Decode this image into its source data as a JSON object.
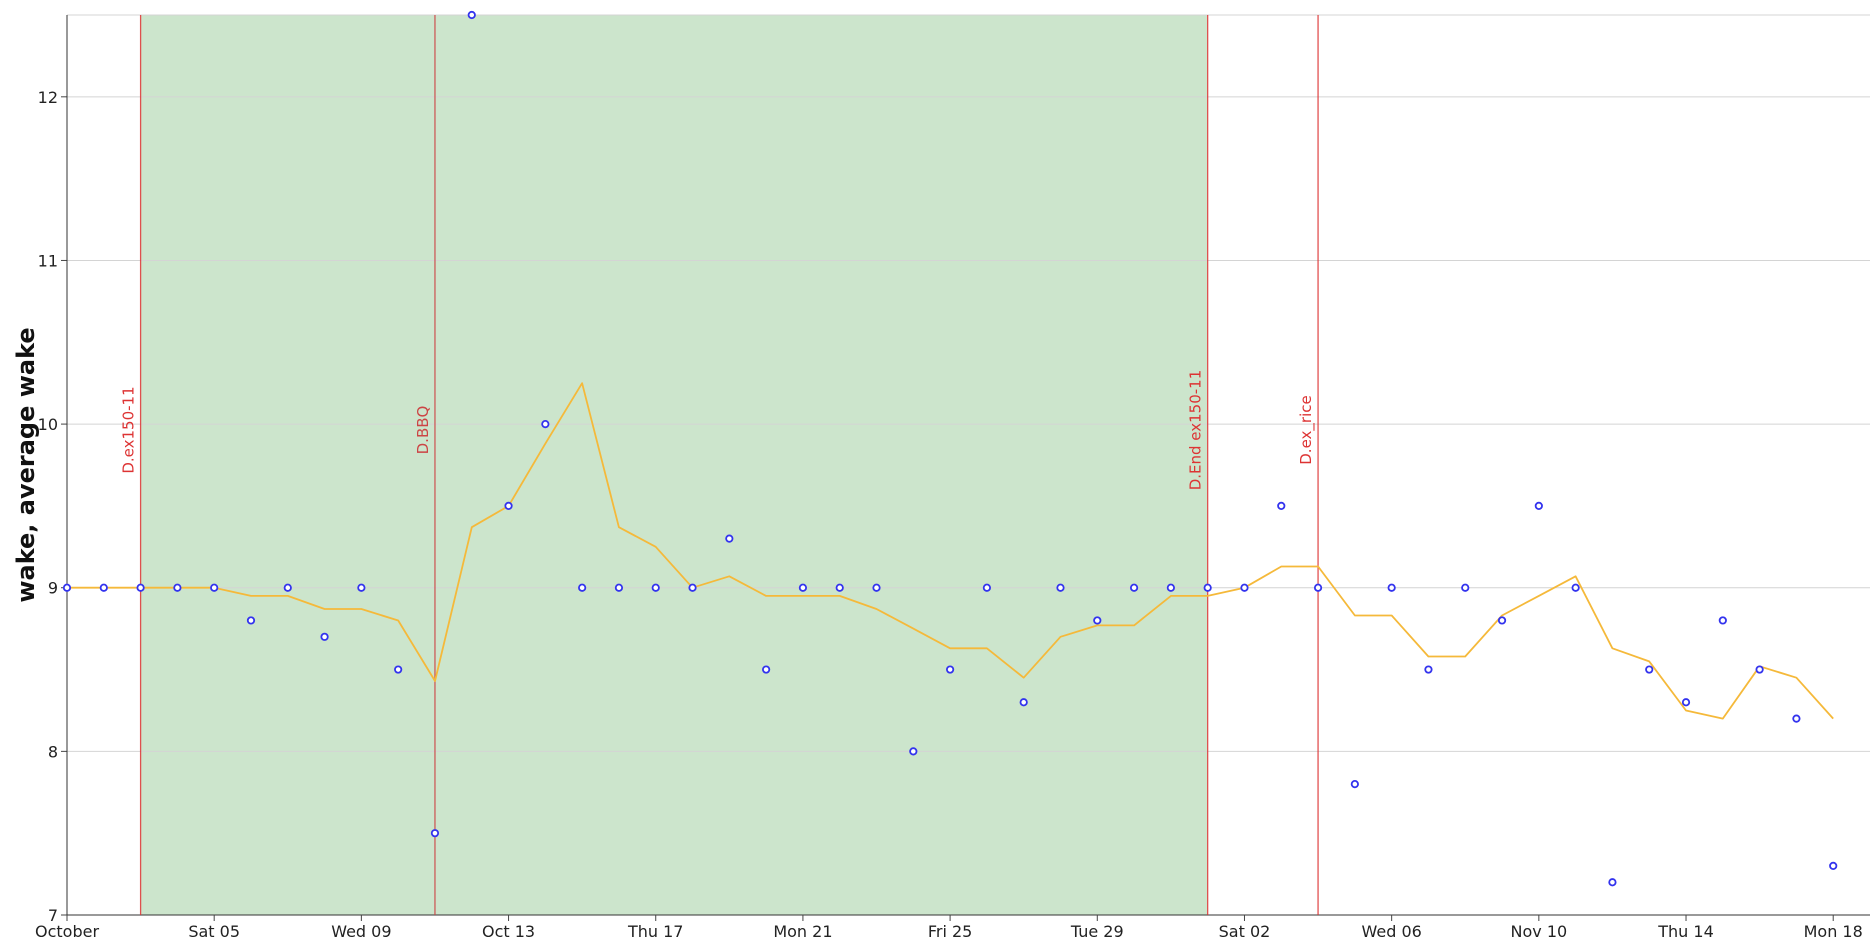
{
  "chart_data": {
    "type": "line",
    "title": "",
    "ylabel": "wake, average wake",
    "xlabel": "",
    "ylim": [
      7,
      12.5
    ],
    "xlim": [
      "2024-10-01",
      "2024-11-19"
    ],
    "grid": "horizontal",
    "y_ticks": [
      7,
      8,
      9,
      10,
      11,
      12
    ],
    "x_ticks": [
      {
        "date": "2024-10-01",
        "label": "October"
      },
      {
        "date": "2024-10-05",
        "label": "Sat 05"
      },
      {
        "date": "2024-10-09",
        "label": "Wed 09"
      },
      {
        "date": "2024-10-13",
        "label": "Oct 13"
      },
      {
        "date": "2024-10-17",
        "label": "Thu 17"
      },
      {
        "date": "2024-10-21",
        "label": "Mon 21"
      },
      {
        "date": "2024-10-25",
        "label": "Fri 25"
      },
      {
        "date": "2024-10-29",
        "label": "Tue 29"
      },
      {
        "date": "2024-11-02",
        "label": "Sat 02"
      },
      {
        "date": "2024-11-06",
        "label": "Wed 06"
      },
      {
        "date": "2024-11-10",
        "label": "Nov 10"
      },
      {
        "date": "2024-11-14",
        "label": "Thu 14"
      },
      {
        "date": "2024-11-18",
        "label": "Mon 18"
      }
    ],
    "shaded_region": {
      "start": "2024-10-03",
      "end": "2024-11-01",
      "color": "#cce5cc"
    },
    "annotations": [
      {
        "date": "2024-10-03",
        "label": "D.ex150-11",
        "color": "#dd3333"
      },
      {
        "date": "2024-10-11",
        "label": "D.BBQ",
        "color": "#cc4444"
      },
      {
        "date": "2024-11-01",
        "label": "D.End ex150-11",
        "color": "#dd3333"
      },
      {
        "date": "2024-11-04",
        "label": "D.ex_rice",
        "color": "#dd3333"
      }
    ],
    "series": [
      {
        "name": "wake",
        "style": "points",
        "color": "#3333ee",
        "points": [
          [
            "2024-10-01",
            9.0
          ],
          [
            "2024-10-02",
            9.0
          ],
          [
            "2024-10-03",
            9.0
          ],
          [
            "2024-10-04",
            9.0
          ],
          [
            "2024-10-05",
            9.0
          ],
          [
            "2024-10-06",
            8.8
          ],
          [
            "2024-10-07",
            9.0
          ],
          [
            "2024-10-08",
            8.7
          ],
          [
            "2024-10-09",
            9.0
          ],
          [
            "2024-10-10",
            8.5
          ],
          [
            "2024-10-11",
            7.5
          ],
          [
            "2024-10-12",
            12.5
          ],
          [
            "2024-10-13",
            9.5
          ],
          [
            "2024-10-14",
            10.0
          ],
          [
            "2024-10-15",
            9.0
          ],
          [
            "2024-10-16",
            9.0
          ],
          [
            "2024-10-17",
            9.0
          ],
          [
            "2024-10-18",
            9.0
          ],
          [
            "2024-10-19",
            9.3
          ],
          [
            "2024-10-20",
            8.5
          ],
          [
            "2024-10-21",
            9.0
          ],
          [
            "2024-10-22",
            9.0
          ],
          [
            "2024-10-23",
            9.0
          ],
          [
            "2024-10-24",
            8.0
          ],
          [
            "2024-10-25",
            8.5
          ],
          [
            "2024-10-26",
            9.0
          ],
          [
            "2024-10-27",
            8.3
          ],
          [
            "2024-10-28",
            9.0
          ],
          [
            "2024-10-29",
            8.8
          ],
          [
            "2024-10-30",
            9.0
          ],
          [
            "2024-10-31",
            9.0
          ],
          [
            "2024-11-01",
            9.0
          ],
          [
            "2024-11-02",
            9.0
          ],
          [
            "2024-11-03",
            9.5
          ],
          [
            "2024-11-04",
            9.0
          ],
          [
            "2024-11-05",
            7.8
          ],
          [
            "2024-11-06",
            9.0
          ],
          [
            "2024-11-07",
            8.5
          ],
          [
            "2024-11-08",
            9.0
          ],
          [
            "2024-11-09",
            8.8
          ],
          [
            "2024-11-10",
            9.5
          ],
          [
            "2024-11-11",
            9.0
          ],
          [
            "2024-11-12",
            7.2
          ],
          [
            "2024-11-13",
            8.5
          ],
          [
            "2024-11-14",
            8.3
          ],
          [
            "2024-11-15",
            8.8
          ],
          [
            "2024-11-16",
            8.5
          ],
          [
            "2024-11-17",
            8.2
          ],
          [
            "2024-11-18",
            7.3
          ]
        ]
      },
      {
        "name": "average wake",
        "style": "line",
        "color": "#f5b93a",
        "points": [
          [
            "2024-10-01",
            9.0
          ],
          [
            "2024-10-02",
            9.0
          ],
          [
            "2024-10-03",
            9.0
          ],
          [
            "2024-10-04",
            9.0
          ],
          [
            "2024-10-05",
            9.0
          ],
          [
            "2024-10-06",
            8.95
          ],
          [
            "2024-10-07",
            8.95
          ],
          [
            "2024-10-08",
            8.87
          ],
          [
            "2024-10-09",
            8.87
          ],
          [
            "2024-10-10",
            8.8
          ],
          [
            "2024-10-11",
            8.43
          ],
          [
            "2024-10-12",
            9.37
          ],
          [
            "2024-10-13",
            9.5
          ],
          [
            "2024-10-14",
            9.88
          ],
          [
            "2024-10-15",
            10.25
          ],
          [
            "2024-10-16",
            9.37
          ],
          [
            "2024-10-17",
            9.25
          ],
          [
            "2024-10-18",
            9.0
          ],
          [
            "2024-10-19",
            9.07
          ],
          [
            "2024-10-20",
            8.95
          ],
          [
            "2024-10-21",
            8.95
          ],
          [
            "2024-10-22",
            8.95
          ],
          [
            "2024-10-23",
            8.87
          ],
          [
            "2024-10-24",
            8.75
          ],
          [
            "2024-10-25",
            8.63
          ],
          [
            "2024-10-26",
            8.63
          ],
          [
            "2024-10-27",
            8.45
          ],
          [
            "2024-10-28",
            8.7
          ],
          [
            "2024-10-29",
            8.77
          ],
          [
            "2024-10-30",
            8.77
          ],
          [
            "2024-10-31",
            8.95
          ],
          [
            "2024-11-01",
            8.95
          ],
          [
            "2024-11-02",
            9.0
          ],
          [
            "2024-11-03",
            9.13
          ],
          [
            "2024-11-04",
            9.13
          ],
          [
            "2024-11-05",
            8.83
          ],
          [
            "2024-11-06",
            8.83
          ],
          [
            "2024-11-07",
            8.58
          ],
          [
            "2024-11-08",
            8.58
          ],
          [
            "2024-11-09",
            8.83
          ],
          [
            "2024-11-10",
            8.95
          ],
          [
            "2024-11-11",
            9.07
          ],
          [
            "2024-11-12",
            8.63
          ],
          [
            "2024-11-13",
            8.55
          ],
          [
            "2024-11-14",
            8.25
          ],
          [
            "2024-11-15",
            8.2
          ],
          [
            "2024-11-16",
            8.52
          ],
          [
            "2024-11-17",
            8.45
          ],
          [
            "2024-11-18",
            8.2
          ]
        ]
      }
    ]
  }
}
